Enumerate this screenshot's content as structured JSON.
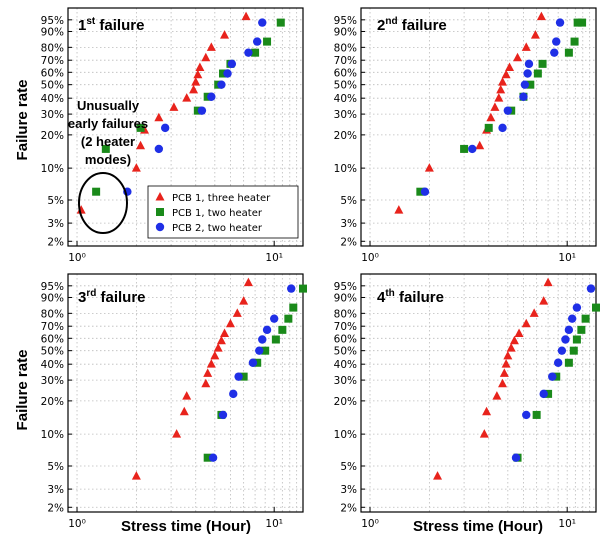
{
  "figure": {
    "ylabel": "Failure rate",
    "xlabel": "Stress time (Hour)"
  },
  "colors": {
    "three_heater": "#e8231c",
    "pcb1_two": "#1a8a1a",
    "pcb2_two": "#1f2fe6"
  },
  "legend": [
    {
      "label": "PCB 1, three heater",
      "marker": "triangle",
      "color": "#e8231c"
    },
    {
      "label": "PCB 1, two heater",
      "marker": "square",
      "color": "#1a8a1a"
    },
    {
      "label": "PCB 2, two heater",
      "marker": "circle",
      "color": "#1f2fe6"
    }
  ],
  "annotation": {
    "lines": [
      "Unusually",
      "early failures",
      "(2 heater",
      "modes)"
    ]
  },
  "chart_data": [
    {
      "type": "scatter",
      "panel_title": "1st failure",
      "title_main": "1",
      "title_sup": "st",
      "title_rest": " failure",
      "x_scale": "log",
      "y_scale": "weibull",
      "xlim": [
        0.9,
        14
      ],
      "yticks": [
        "95%",
        "90%",
        "80%",
        "70%",
        "60%",
        "50%",
        "40%",
        "30%",
        "20%",
        "10%",
        "5%",
        "3%",
        "2%"
      ],
      "ytick_values": [
        95,
        90,
        80,
        70,
        60,
        50,
        40,
        30,
        20,
        10,
        5,
        3,
        2
      ],
      "xticks": [
        "10⁰",
        "10¹"
      ],
      "xtick_values": [
        1,
        10
      ],
      "series": [
        {
          "name": "PCB 1, three heater",
          "marker": "triangle",
          "color": "#e8231c",
          "x": [
            1.05,
            2.0,
            2.1,
            2.2,
            2.6,
            3.1,
            3.6,
            3.9,
            4.0,
            4.1,
            4.2,
            4.5,
            4.8,
            5.6,
            7.2
          ],
          "y": [
            4,
            10,
            16,
            22,
            28,
            34,
            40,
            46,
            52,
            58,
            64,
            72,
            80,
            88,
            96
          ]
        },
        {
          "name": "PCB 1, two heater",
          "marker": "square",
          "color": "#1a8a1a",
          "x": [
            1.25,
            1.4,
            2.1,
            4.1,
            4.6,
            5.2,
            5.5,
            6.0,
            8.0,
            9.2,
            10.8
          ],
          "y": [
            6,
            15,
            23,
            32,
            41,
            50,
            59,
            67,
            76,
            84,
            94
          ]
        },
        {
          "name": "PCB 2, two heater",
          "marker": "circle",
          "color": "#1f2fe6",
          "x": [
            1.8,
            2.6,
            2.8,
            4.3,
            4.8,
            5.4,
            5.8,
            6.1,
            7.4,
            8.2,
            8.7
          ],
          "y": [
            6,
            15,
            23,
            32,
            41,
            50,
            59,
            67,
            76,
            84,
            94
          ]
        }
      ]
    },
    {
      "type": "scatter",
      "panel_title": "2nd failure",
      "title_main": "2",
      "title_sup": "nd",
      "title_rest": " failure",
      "x_scale": "log",
      "y_scale": "weibull",
      "xlim": [
        0.9,
        14
      ],
      "yticks": [
        "95%",
        "90%",
        "80%",
        "70%",
        "60%",
        "50%",
        "40%",
        "30%",
        "20%",
        "10%",
        "5%",
        "3%",
        "2%"
      ],
      "ytick_values": [
        95,
        90,
        80,
        70,
        60,
        50,
        40,
        30,
        20,
        10,
        5,
        3,
        2
      ],
      "xticks": [
        "10⁰",
        "10¹"
      ],
      "xtick_values": [
        1,
        10
      ],
      "series": [
        {
          "name": "PCB 1, three heater",
          "marker": "triangle",
          "color": "#e8231c",
          "x": [
            1.4,
            2.0,
            3.6,
            3.9,
            4.1,
            4.3,
            4.5,
            4.6,
            4.7,
            4.9,
            5.1,
            5.6,
            6.2,
            6.9,
            7.4
          ],
          "y": [
            4,
            10,
            16,
            22,
            28,
            34,
            40,
            46,
            52,
            58,
            64,
            72,
            80,
            88,
            96
          ]
        },
        {
          "name": "PCB 1, two heater",
          "marker": "square",
          "color": "#1a8a1a",
          "x": [
            1.8,
            3.0,
            4.0,
            5.2,
            6.0,
            6.5,
            7.1,
            7.5,
            10.2,
            10.9,
            11.3,
            11.9
          ],
          "y": [
            6,
            15,
            23,
            32,
            41,
            50,
            59,
            67,
            76,
            84,
            94,
            94
          ]
        },
        {
          "name": "PCB 2, two heater",
          "marker": "circle",
          "color": "#1f2fe6",
          "x": [
            1.9,
            3.3,
            4.7,
            5.0,
            6.0,
            6.1,
            6.3,
            6.4,
            8.6,
            8.8,
            9.2
          ],
          "y": [
            6,
            15,
            23,
            32,
            41,
            50,
            59,
            67,
            76,
            84,
            94
          ]
        }
      ]
    },
    {
      "type": "scatter",
      "panel_title": "3rd failure",
      "title_main": "3",
      "title_sup": "rd",
      "title_rest": " failure",
      "x_scale": "log",
      "y_scale": "weibull",
      "xlim": [
        0.9,
        14
      ],
      "yticks": [
        "95%",
        "90%",
        "80%",
        "70%",
        "60%",
        "50%",
        "40%",
        "30%",
        "20%",
        "10%",
        "5%",
        "3%",
        "2%"
      ],
      "ytick_values": [
        95,
        90,
        80,
        70,
        60,
        50,
        40,
        30,
        20,
        10,
        5,
        3,
        2
      ],
      "xticks": [
        "10⁰",
        "10¹"
      ],
      "xtick_values": [
        1,
        10
      ],
      "series": [
        {
          "name": "PCB 1, three heater",
          "marker": "triangle",
          "color": "#e8231c",
          "x": [
            2.0,
            3.2,
            3.5,
            3.6,
            4.5,
            4.6,
            4.8,
            5.0,
            5.2,
            5.4,
            5.6,
            6.0,
            6.5,
            7.0,
            7.4
          ],
          "y": [
            4,
            10,
            16,
            22,
            28,
            34,
            40,
            46,
            52,
            58,
            64,
            72,
            80,
            88,
            96
          ]
        },
        {
          "name": "PCB 1, two heater",
          "marker": "square",
          "color": "#1a8a1a",
          "x": [
            4.6,
            5.4,
            7.0,
            8.2,
            9.0,
            10.2,
            11.0,
            11.8,
            12.5,
            14.0
          ],
          "y": [
            6,
            15,
            32,
            41,
            50,
            59,
            67,
            76,
            84,
            94
          ]
        },
        {
          "name": "PCB 2, two heater",
          "marker": "circle",
          "color": "#1f2fe6",
          "x": [
            4.9,
            5.5,
            6.2,
            6.6,
            7.8,
            8.4,
            8.7,
            9.2,
            10.0,
            12.2
          ],
          "y": [
            6,
            15,
            23,
            32,
            41,
            50,
            59,
            67,
            76,
            94
          ]
        }
      ]
    },
    {
      "type": "scatter",
      "panel_title": "4th failure",
      "title_main": "4",
      "title_sup": "th",
      "title_rest": " failure",
      "x_scale": "log",
      "y_scale": "weibull",
      "xlim": [
        0.9,
        14
      ],
      "yticks": [
        "95%",
        "90%",
        "80%",
        "70%",
        "60%",
        "50%",
        "40%",
        "30%",
        "20%",
        "10%",
        "5%",
        "3%",
        "2%"
      ],
      "ytick_values": [
        95,
        90,
        80,
        70,
        60,
        50,
        40,
        30,
        20,
        10,
        5,
        3,
        2
      ],
      "xticks": [
        "10⁰",
        "10¹"
      ],
      "xtick_values": [
        1,
        10
      ],
      "series": [
        {
          "name": "PCB 1, three heater",
          "marker": "triangle",
          "color": "#e8231c",
          "x": [
            2.2,
            3.8,
            3.9,
            4.4,
            4.7,
            4.8,
            4.9,
            5.0,
            5.2,
            5.4,
            5.7,
            6.2,
            6.8,
            7.6,
            8.0
          ],
          "y": [
            4,
            10,
            16,
            22,
            28,
            34,
            40,
            46,
            52,
            58,
            64,
            72,
            80,
            88,
            96
          ]
        },
        {
          "name": "PCB 1, two heater",
          "marker": "square",
          "color": "#1a8a1a",
          "x": [
            5.6,
            7.0,
            8.0,
            8.8,
            10.2,
            10.8,
            11.2,
            11.8,
            12.4,
            14.0,
            15.0
          ],
          "y": [
            6,
            15,
            23,
            32,
            41,
            50,
            59,
            67,
            76,
            84,
            94
          ]
        },
        {
          "name": "PCB 2, two heater",
          "marker": "circle",
          "color": "#1f2fe6",
          "x": [
            5.5,
            6.2,
            7.6,
            8.4,
            9.0,
            9.4,
            9.8,
            10.2,
            10.6,
            11.2,
            13.2
          ],
          "y": [
            6,
            15,
            23,
            32,
            41,
            50,
            59,
            67,
            76,
            84,
            94
          ]
        }
      ]
    }
  ]
}
